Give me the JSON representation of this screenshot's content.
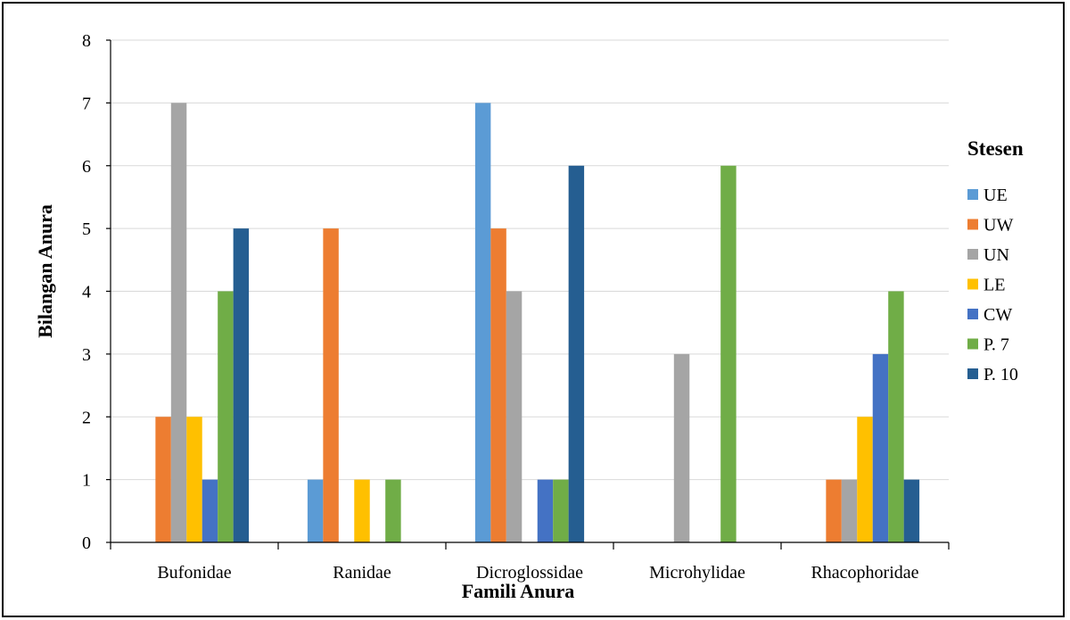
{
  "chart_data": {
    "type": "bar",
    "xlabel": "Famili Anura",
    "ylabel": "Bilangan Anura",
    "ylim": [
      0,
      8
    ],
    "yticks": [
      0,
      1,
      2,
      3,
      4,
      5,
      6,
      7,
      8
    ],
    "grid": true,
    "legend_position": "right",
    "legend_title": "Stesen",
    "categories": [
      "Bufonidae",
      "Ranidae",
      "Dicroglossidae",
      "Microhylidae",
      "Rhacophoridae"
    ],
    "series": [
      {
        "name": "UE",
        "color": "#5B9BD5",
        "values": [
          0,
          1,
          7,
          0,
          0
        ]
      },
      {
        "name": "UW",
        "color": "#ED7D31",
        "values": [
          2,
          5,
          5,
          0,
          1
        ]
      },
      {
        "name": "UN",
        "color": "#A5A5A5",
        "values": [
          7,
          0,
          4,
          3,
          1
        ]
      },
      {
        "name": "LE",
        "color": "#FFC000",
        "values": [
          2,
          1,
          0,
          0,
          2
        ]
      },
      {
        "name": "CW",
        "color": "#4472C4",
        "values": [
          1,
          0,
          1,
          0,
          3
        ]
      },
      {
        "name": "P. 7",
        "color": "#70AD47",
        "values": [
          4,
          1,
          1,
          6,
          4
        ]
      },
      {
        "name": "P. 10",
        "color": "#255E91",
        "values": [
          5,
          0,
          6,
          0,
          1
        ]
      }
    ]
  }
}
